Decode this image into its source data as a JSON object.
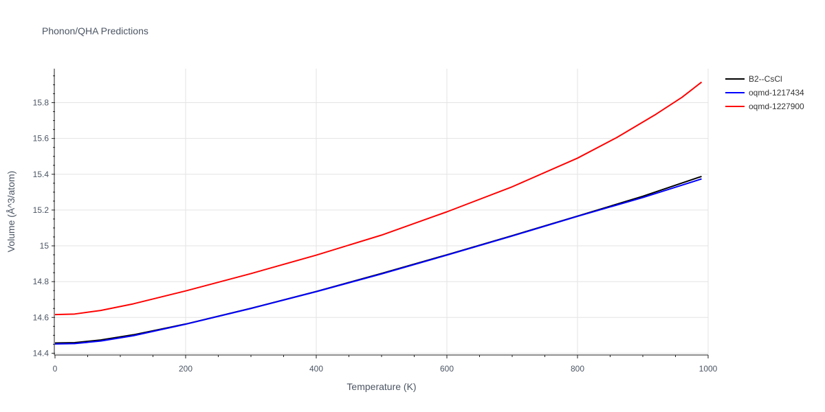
{
  "chart_data": {
    "type": "line",
    "title": "Phonon/QHA Predictions",
    "xlabel": "Temperature (K)",
    "ylabel": "Volume (Å^3/atom)",
    "xlim": [
      0,
      1000
    ],
    "ylim": [
      14.39,
      15.99
    ],
    "xticks": [
      0,
      200,
      400,
      600,
      800,
      1000
    ],
    "xtick_labels": [
      "0",
      "200",
      "400",
      "600",
      "800",
      "1000"
    ],
    "yticks": [
      14.4,
      14.6,
      14.8,
      15.0,
      15.2,
      15.4,
      15.6,
      15.8
    ],
    "ytick_labels": [
      "14.4",
      "14.6",
      "14.8",
      "15",
      "15.2",
      "15.4",
      "15.6",
      "15.8"
    ],
    "grid": true,
    "legend_position": "top-right",
    "series": [
      {
        "name": "B2--CsCl",
        "color": "#000000",
        "x": [
          0,
          30,
          70,
          120,
          200,
          300,
          400,
          500,
          600,
          700,
          800,
          900,
          990
        ],
        "y": [
          14.457,
          14.459,
          14.474,
          14.503,
          14.563,
          14.651,
          14.745,
          14.846,
          14.95,
          15.057,
          15.166,
          15.277,
          15.388
        ]
      },
      {
        "name": "oqmd-1217434",
        "color": "#0000ff",
        "x": [
          0,
          30,
          70,
          120,
          200,
          300,
          400,
          500,
          600,
          700,
          800,
          900,
          990
        ],
        "y": [
          14.452,
          14.454,
          14.468,
          14.498,
          14.562,
          14.65,
          14.744,
          14.843,
          14.948,
          15.055,
          15.165,
          15.27,
          15.374
        ]
      },
      {
        "name": "oqmd-1227900",
        "color": "#ff0000",
        "x": [
          0,
          30,
          70,
          120,
          200,
          300,
          400,
          500,
          600,
          700,
          800,
          860,
          920,
          960,
          990
        ],
        "y": [
          14.616,
          14.619,
          14.639,
          14.676,
          14.748,
          14.845,
          14.948,
          15.06,
          15.19,
          15.33,
          15.49,
          15.605,
          15.735,
          15.83,
          15.915
        ]
      }
    ]
  }
}
